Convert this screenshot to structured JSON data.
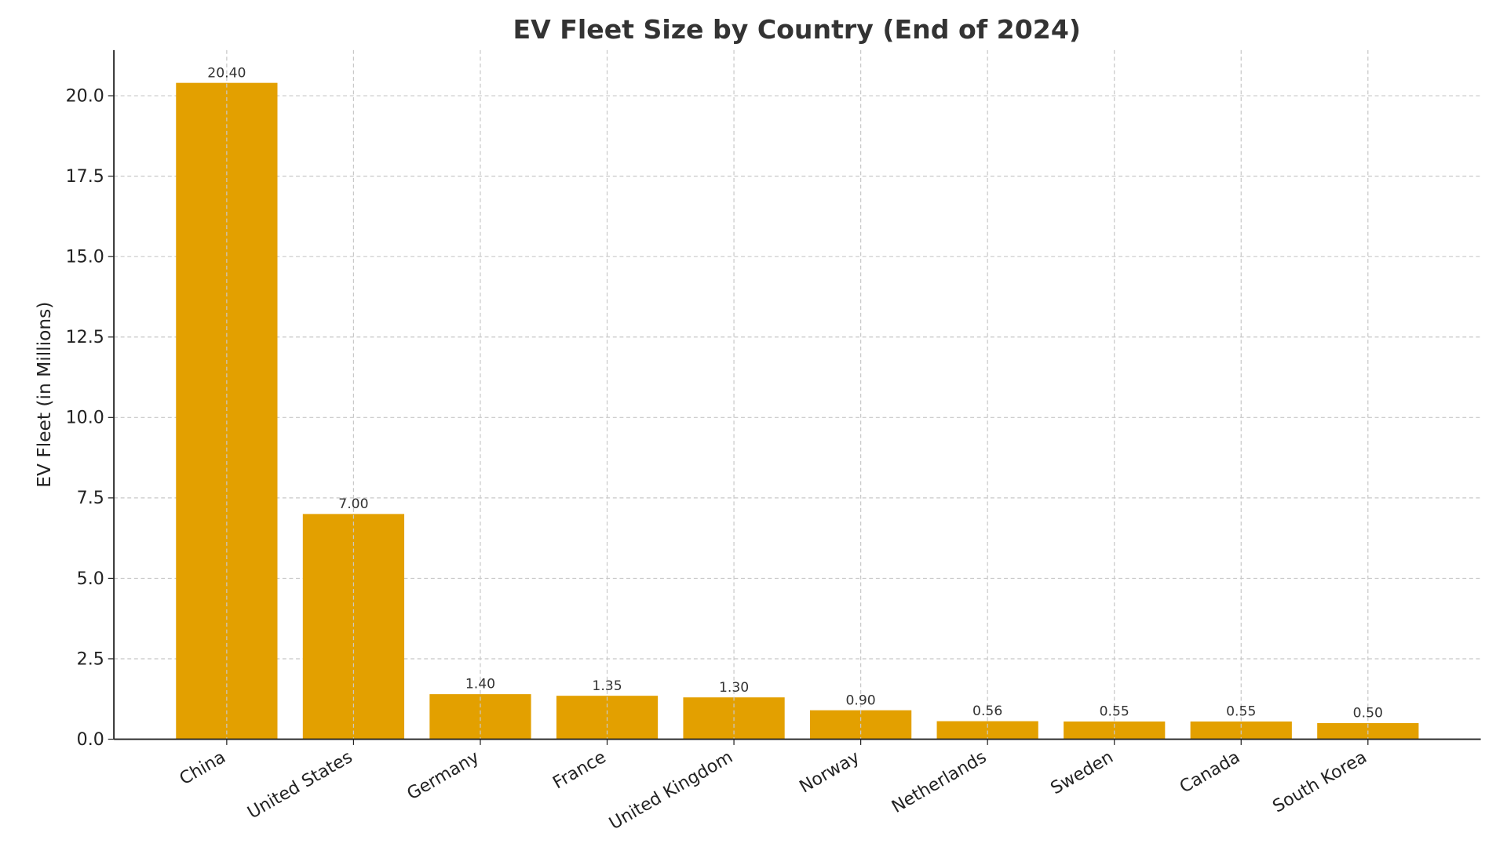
{
  "chart_data": {
    "type": "bar",
    "title": "EV Fleet Size by Country (End of 2024)",
    "xlabel": "",
    "ylabel": "EV Fleet (in Millions)",
    "categories": [
      "China",
      "United States",
      "Germany",
      "France",
      "United Kingdom",
      "Norway",
      "Netherlands",
      "Sweden",
      "Canada",
      "South Korea"
    ],
    "values": [
      20.4,
      7.0,
      1.4,
      1.35,
      1.3,
      0.9,
      0.56,
      0.55,
      0.55,
      0.5
    ],
    "data_labels": [
      "20.40",
      "7.00",
      "1.40",
      "1.35",
      "1.30",
      "0.90",
      "0.56",
      "0.55",
      "0.55",
      "0.50"
    ],
    "yticks": [
      "0.0",
      "2.5",
      "5.0",
      "7.5",
      "10.0",
      "12.5",
      "15.0",
      "17.5",
      "20.0"
    ],
    "ylim": [
      0,
      21.42
    ],
    "grid": true,
    "bar_color": "#E3A000",
    "xtick_rotation_deg": 30
  }
}
